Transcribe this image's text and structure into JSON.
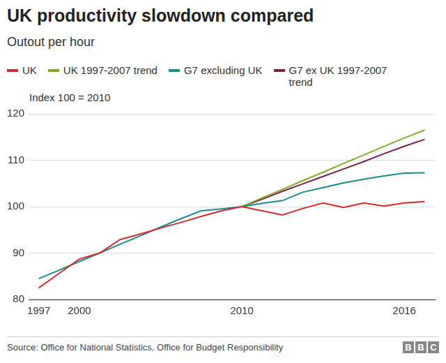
{
  "chart_data": {
    "type": "line",
    "title": "UK productivity slowdown compared",
    "subtitle": "Outout per hour",
    "annotation": "Index 100 = 2010",
    "source": "Source: Office for National Statistics, Office for Budget Responsibility",
    "logo": "BBC",
    "categories": [
      "1997",
      null,
      "2000",
      null,
      null,
      null,
      null,
      null,
      null,
      null,
      "2010",
      null,
      null,
      null,
      null,
      null,
      null,
      null,
      "2016",
      null
    ],
    "series": [
      {
        "name": "UK",
        "color": "#d42a2a",
        "values": [
          82.5,
          85.6,
          88.7,
          90.0,
          92.9,
          94.1,
          95.4,
          96.6,
          97.9,
          99.1,
          100,
          99.1,
          98.2,
          99.6,
          100.8,
          99.8,
          100.8,
          100.1,
          100.8,
          101.1
        ]
      },
      {
        "name": "UK 1997-2007 trend",
        "color": "#7fad26",
        "values": [
          null,
          null,
          null,
          null,
          null,
          null,
          null,
          null,
          null,
          null,
          100,
          101.9,
          103.7,
          105.6,
          107.4,
          109.3,
          111.1,
          113.0,
          114.8,
          116.5
        ]
      },
      {
        "name": "G7 excluding UK",
        "color": "#1a8a8f",
        "values": [
          84.5,
          86.3,
          88.2,
          90.0,
          91.9,
          93.7,
          95.6,
          97.4,
          99.1,
          99.5,
          100,
          100.7,
          101.3,
          103.1,
          104.1,
          105.1,
          105.9,
          106.6,
          107.2,
          107.3
        ]
      },
      {
        "name": "G7 ex UK 1997-2007 trend",
        "color": "#7a1f4e",
        "values": [
          null,
          null,
          null,
          null,
          null,
          null,
          null,
          null,
          null,
          null,
          100,
          101.6,
          103.3,
          104.9,
          106.5,
          108.1,
          109.7,
          111.4,
          113.0,
          114.5
        ]
      }
    ],
    "ylim": [
      80,
      120
    ],
    "yticks": [
      80,
      90,
      100,
      110,
      120
    ],
    "grid": true,
    "legend": "top"
  }
}
